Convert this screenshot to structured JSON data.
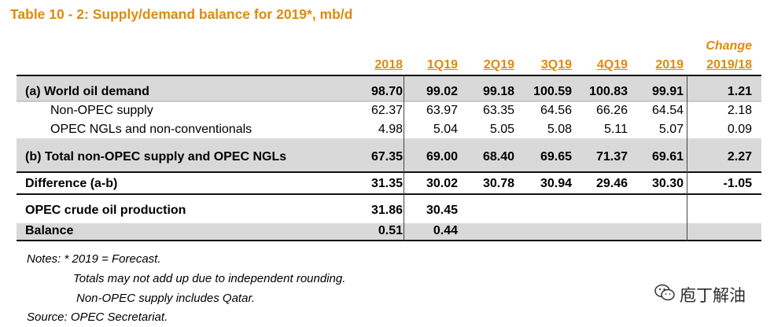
{
  "title": "Table 10 - 2: Supply/demand balance for 2019*, mb/d",
  "columns": [
    "2018",
    "1Q19",
    "2Q19",
    "3Q19",
    "4Q19",
    "2019"
  ],
  "change_header": {
    "line1": "Change",
    "line2": "2019/18"
  },
  "rows": [
    {
      "label": "(a) World oil demand",
      "values": [
        "98.70",
        "99.02",
        "99.18",
        "100.59",
        "100.83",
        "99.91"
      ],
      "change": "1.21"
    },
    {
      "label": "Non-OPEC supply",
      "values": [
        "62.37",
        "63.97",
        "63.35",
        "64.56",
        "66.26",
        "64.54"
      ],
      "change": "2.18"
    },
    {
      "label": "OPEC NGLs and non-conventionals",
      "values": [
        "4.98",
        "5.04",
        "5.05",
        "5.08",
        "5.11",
        "5.07"
      ],
      "change": "0.09"
    },
    {
      "label": "(b) Total non-OPEC supply and OPEC NGLs",
      "values": [
        "67.35",
        "69.00",
        "68.40",
        "69.65",
        "71.37",
        "69.61"
      ],
      "change": "2.27"
    },
    {
      "label": "Difference (a-b)",
      "values": [
        "31.35",
        "30.02",
        "30.78",
        "30.94",
        "29.46",
        "30.30"
      ],
      "change": "-1.05"
    },
    {
      "label": "OPEC crude oil production",
      "values": [
        "31.86",
        "30.45",
        "",
        "",
        "",
        ""
      ],
      "change": ""
    },
    {
      "label": "Balance",
      "values": [
        "0.51",
        "0.44",
        "",
        "",
        "",
        ""
      ],
      "change": ""
    }
  ],
  "notes": [
    "Notes: * 2019 = Forecast.",
    "Totals may not add up due to independent rounding.",
    "Non-OPEC supply includes Qatar.",
    "Source: OPEC Secretariat."
  ],
  "watermark": {
    "text": "庖丁解油",
    "icon": "wechat-icon"
  },
  "colors": {
    "accent": "#e08a0b",
    "band": "#d9d9d9"
  }
}
